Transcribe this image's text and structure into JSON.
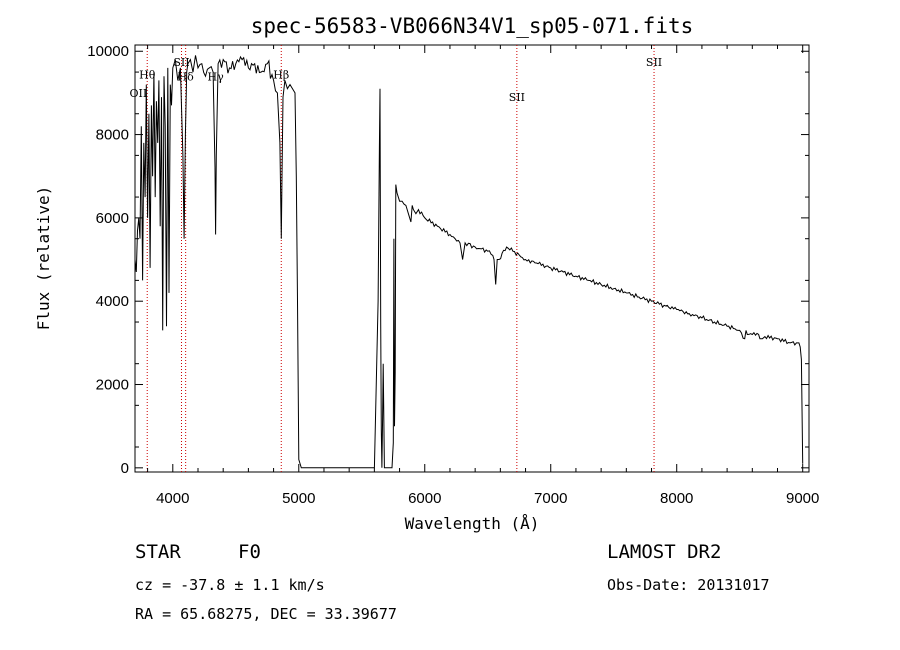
{
  "chart_data": {
    "type": "line",
    "title": "spec-56583-VB066N34V1_sp05-071.fits",
    "xlabel": "Wavelength (Å)",
    "ylabel": "Flux (relative)",
    "xlim": [
      3700,
      9050
    ],
    "ylim": [
      -100,
      10150
    ],
    "xticks": [
      4000,
      5000,
      6000,
      7000,
      8000,
      9000
    ],
    "xtick_labels": [
      "4000",
      "5000",
      "6000",
      "7000",
      "8000",
      "9000"
    ],
    "yticks": [
      0,
      2000,
      4000,
      6000,
      8000,
      10000
    ],
    "ytick_labels": [
      "0",
      "2000",
      "4000",
      "6000",
      "8000",
      "10000"
    ],
    "grid": false,
    "line_color": "#000000",
    "marker_color": "#cc0000",
    "spectral_lines": [
      {
        "label": "OII",
        "wavelength": 3727,
        "label_y": 8900
      },
      {
        "label": "Hδ",
        "wavelength": 4102,
        "label_y": 9300
      },
      {
        "label": "Hγ",
        "wavelength": 4340,
        "label_y": 9300
      },
      {
        "label": "Hθ",
        "wavelength": 3797,
        "label_y": 9350
      },
      {
        "label": "SII",
        "wavelength": 4069,
        "label_y": 9650
      },
      {
        "label": "Hβ",
        "wavelength": 4861,
        "label_y": 9350
      },
      {
        "label": "SII",
        "wavelength": 6731,
        "label_y": 8800
      },
      {
        "label": "SII",
        "wavelength": 7820,
        "label_y": 9650
      }
    ],
    "marker_wavelengths": [
      3797,
      4069,
      4102,
      4861,
      6731,
      7820
    ],
    "series": [
      {
        "x": [
          3700,
          3710,
          3720,
          3730,
          3740,
          3750,
          3760,
          3770,
          3780,
          3790,
          3800,
          3810,
          3820,
          3830,
          3840,
          3850,
          3860,
          3870,
          3880,
          3890,
          3900,
          3910,
          3920,
          3930,
          3940,
          3950,
          3960,
          3970,
          3980,
          3990,
          4000,
          4020,
          4040,
          4060,
          4080,
          4090,
          4100,
          4110,
          4120,
          4140,
          4160,
          4180,
          4200,
          4230,
          4260,
          4290,
          4320,
          4335,
          4340,
          4345,
          4360,
          4400,
          4450,
          4500,
          4550,
          4600,
          4650,
          4700,
          4750,
          4800,
          4830,
          4850,
          4855,
          4861,
          4867,
          4875,
          4890,
          4910,
          4930,
          4950,
          4970,
          4980,
          4990,
          5000,
          5020,
          5100,
          5300,
          5500,
          5600,
          5630,
          5640,
          5645,
          5650,
          5655,
          5660,
          5665,
          5670,
          5680,
          5700,
          5720,
          5740,
          5750,
          5755,
          5760,
          5765,
          5770,
          5780,
          5800,
          5820,
          5850,
          5870,
          5890,
          5900,
          5910,
          5930,
          5950,
          6000,
          6100,
          6200,
          6280,
          6300,
          6320,
          6400,
          6500,
          6540,
          6550,
          6563,
          6575,
          6590,
          6650,
          6700,
          6800,
          6900,
          7000,
          7100,
          7200,
          7300,
          7400,
          7500,
          7600,
          7700,
          7800,
          7900,
          8000,
          8100,
          8200,
          8300,
          8400,
          8500,
          8540,
          8550,
          8560,
          8600,
          8650,
          8660,
          8680,
          8700,
          8800,
          8900,
          8950,
          8970,
          8980,
          8990,
          9000
        ],
        "y": [
          5000,
          4700,
          5700,
          6000,
          5500,
          8200,
          4500,
          7800,
          6500,
          9200,
          6000,
          8500,
          4800,
          8700,
          7000,
          9500,
          6500,
          8800,
          7800,
          9300,
          5800,
          8900,
          3300,
          9400,
          8200,
          3400,
          9600,
          4200,
          9200,
          8700,
          9600,
          9800,
          9300,
          9600,
          7500,
          5500,
          8000,
          9500,
          9700,
          9800,
          9500,
          9900,
          9600,
          9700,
          9400,
          9600,
          9500,
          7200,
          5600,
          7500,
          9700,
          9800,
          9600,
          9700,
          9800,
          9600,
          9700,
          9500,
          9700,
          9300,
          9000,
          7800,
          6800,
          5500,
          7000,
          8900,
          9300,
          9100,
          9200,
          9100,
          9000,
          7000,
          4000,
          200,
          0,
          0,
          0,
          0,
          0,
          4000,
          7700,
          9100,
          3500,
          900,
          0,
          1200,
          2500,
          0,
          0,
          0,
          0,
          600,
          5500,
          1000,
          2300,
          6800,
          6600,
          6400,
          6400,
          6300,
          6100,
          5900,
          6300,
          6200,
          6100,
          6200,
          6000,
          5800,
          5600,
          5400,
          5000,
          5400,
          5300,
          5200,
          5100,
          5000,
          4400,
          5000,
          5000,
          5300,
          5200,
          5000,
          4900,
          4800,
          4700,
          4600,
          4500,
          4400,
          4300,
          4200,
          4100,
          4000,
          3900,
          3800,
          3700,
          3600,
          3500,
          3400,
          3300,
          3100,
          3300,
          3200,
          3200,
          3200,
          3100,
          3100,
          3150,
          3100,
          3000,
          3000,
          3000,
          2900,
          2600,
          100
        ]
      }
    ]
  },
  "footer": {
    "object_class": "STAR",
    "subclass": "F0",
    "survey": "LAMOST DR2",
    "redshift": "cz = -37.8 ± 1.1 km/s",
    "obs_date": "Obs-Date: 20131017",
    "coords": "RA =  65.68275, DEC =  33.39677"
  }
}
